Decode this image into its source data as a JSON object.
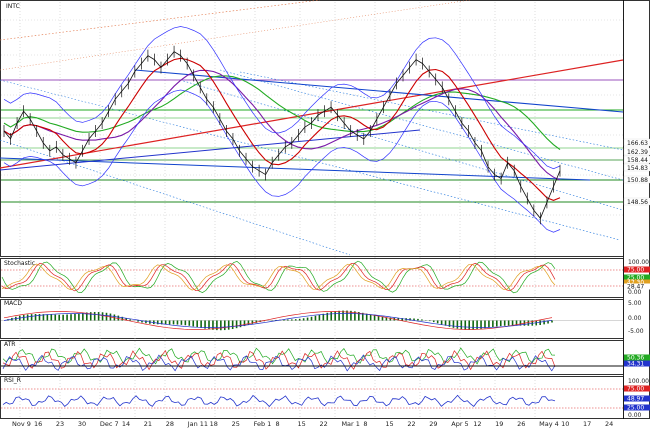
{
  "chart_data": {
    "type": "line",
    "main": {
      "label": "INTC",
      "price_labels": [
        {
          "v": "166.63",
          "bg": "#ffffff",
          "fg": "#111"
        },
        {
          "v": "162.39",
          "bg": "#ffffff",
          "fg": "#111"
        },
        {
          "v": "158.44",
          "bg": "#ffffff",
          "fg": "#111"
        },
        {
          "v": "154.83",
          "bg": "#ffffff",
          "fg": "#111"
        },
        {
          "v": "150.88",
          "bg": "#ffffff",
          "fg": "#111"
        },
        {
          "v": "148.56",
          "bg": "#ffffff",
          "fg": "#111"
        }
      ],
      "price_series": [
        150,
        148,
        152,
        155,
        153,
        150,
        147,
        145,
        146,
        144,
        143,
        142,
        145,
        148,
        150,
        152,
        155,
        158,
        160,
        162,
        165,
        167,
        169,
        168,
        166,
        168,
        170,
        169,
        167,
        164,
        161,
        158,
        156,
        153,
        150,
        148,
        145,
        143,
        141,
        140,
        139,
        142,
        144,
        146,
        147,
        149,
        151,
        152,
        154,
        155,
        156,
        154,
        152,
        150,
        149,
        148,
        150,
        153,
        156,
        159,
        162,
        164,
        166,
        168,
        167,
        165,
        163,
        161,
        158,
        155,
        152,
        150,
        147,
        145,
        141,
        139,
        138,
        142,
        140,
        136,
        133,
        130,
        128,
        132,
        136,
        140
      ]
    },
    "stochastic": {
      "label": "Stochastic",
      "ticks": [
        "100.00",
        "0.00"
      ],
      "labels": [
        "75.00",
        "25.00",
        "47.30",
        "28.47"
      ]
    },
    "macd": {
      "label": "MACD",
      "ticks": [
        "5.00",
        "0.00",
        "-5.00"
      ]
    },
    "atr": {
      "label": "ATR",
      "ticks": [
        "50.36",
        "34.31"
      ]
    },
    "rsi": {
      "label": "RSI_R",
      "ticks": [
        "100.00",
        "0.00"
      ],
      "labels": [
        "75.00",
        "48.97",
        "25.00"
      ]
    },
    "x_labels": [
      "Nov 9",
      "16",
      "23",
      "30",
      "Dec 7",
      "14",
      "21",
      "28",
      "Jan 11",
      "18",
      "25",
      "Feb 1",
      "8",
      "15",
      "22",
      "Mar 1",
      "8",
      "15",
      "22",
      "29",
      "Apr 5",
      "12",
      "19",
      "26",
      "May 4",
      "10",
      "17",
      "24"
    ],
    "colors": {
      "bollinger": "#1a1aff",
      "ma_red": "#cc0000",
      "ma_green": "#22aa22",
      "ma_purple": "#7a1aa8",
      "trend_blue": "#1144cc",
      "trend_red": "#dd2222",
      "band_green": "#228822"
    }
  }
}
